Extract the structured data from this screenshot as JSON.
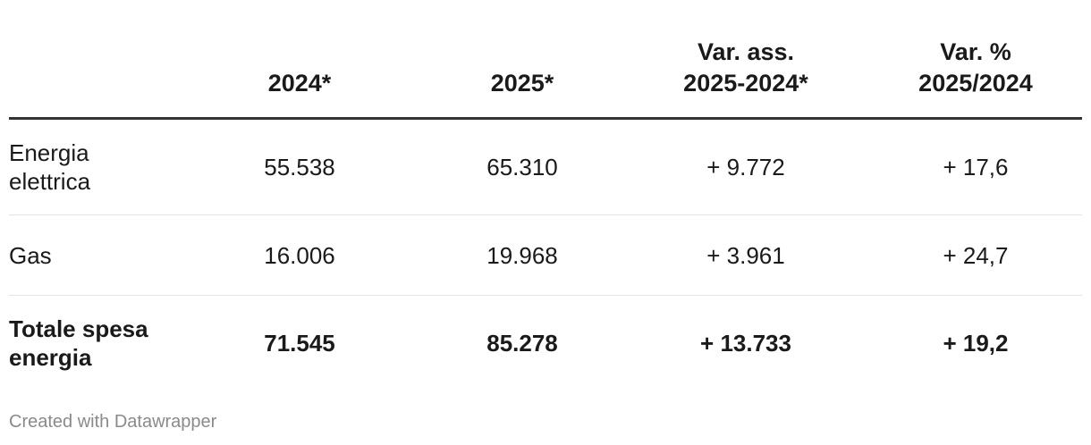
{
  "chart_data": {
    "type": "table",
    "columns": [
      "",
      "2024*",
      "2025*",
      "Var. ass. 2025-2024*",
      "Var. % 2025/2024"
    ],
    "header": {
      "c0": "",
      "c1": "2024*",
      "c2": "2025*",
      "c3_line1": "Var. ass.",
      "c3_line2": "2025-2024*",
      "c4_line1": "Var. %",
      "c4_line2": "2025/2024"
    },
    "rows": [
      {
        "label_line1": "Energia",
        "label_line2": "elettrica",
        "v2024": "55.538",
        "v2025": "65.310",
        "var_abs": "+ 9.772",
        "var_pct": "+ 17,6"
      },
      {
        "label_line1": "Gas",
        "label_line2": "",
        "v2024": "16.006",
        "v2025": "19.968",
        "var_abs": "+ 3.961",
        "var_pct": "+ 24,7"
      },
      {
        "label_line1": "Totale spesa",
        "label_line2": "energia",
        "v2024": "71.545",
        "v2025": "85.278",
        "var_abs": "+ 13.733",
        "var_pct": "+ 19,2"
      }
    ]
  },
  "footer": {
    "credit": "Created with Datawrapper"
  }
}
